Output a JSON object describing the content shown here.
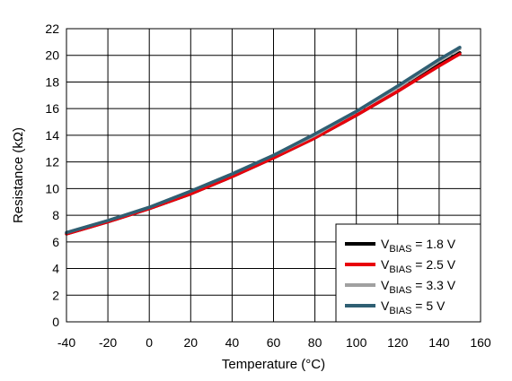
{
  "chart_data": {
    "type": "line",
    "title": "",
    "xlabel": "Temperature (°C)",
    "ylabel": "Resistance (kΩ)",
    "xlim": [
      -40,
      160
    ],
    "ylim": [
      0,
      22
    ],
    "xticks": [
      -40,
      -20,
      0,
      20,
      40,
      60,
      80,
      100,
      120,
      140,
      160
    ],
    "yticks": [
      0,
      2,
      4,
      6,
      8,
      10,
      12,
      14,
      16,
      18,
      20,
      22
    ],
    "grid": true,
    "legend_position": "bottom-right",
    "x": [
      -40,
      -20,
      0,
      20,
      40,
      60,
      80,
      100,
      120,
      140,
      150
    ],
    "series": [
      {
        "name_main": "V",
        "name_sub": "BIAS",
        "name_rest": " = 1.8 V",
        "color": "#000000",
        "values": [
          6.6,
          7.5,
          8.5,
          9.6,
          10.9,
          12.3,
          13.8,
          15.5,
          17.3,
          19.3,
          20.2
        ]
      },
      {
        "name_main": "V",
        "name_sub": "BIAS",
        "name_rest": " = 2.5 V",
        "color": "#e8000b",
        "values": [
          6.6,
          7.5,
          8.5,
          9.6,
          10.9,
          12.3,
          13.8,
          15.5,
          17.3,
          19.2,
          20.1
        ]
      },
      {
        "name_main": "V",
        "name_sub": "BIAS",
        "name_rest": " = 3.3 V",
        "color": "#a0a0a0",
        "values": [
          6.7,
          7.6,
          8.6,
          9.8,
          11.1,
          12.5,
          14.0,
          15.8,
          17.6,
          19.6,
          20.5
        ]
      },
      {
        "name_main": "V",
        "name_sub": "BIAS",
        "name_rest": " = 5 V",
        "color": "#2f5f73",
        "values": [
          6.7,
          7.6,
          8.6,
          9.8,
          11.1,
          12.5,
          14.1,
          15.8,
          17.7,
          19.7,
          20.6
        ]
      }
    ]
  }
}
